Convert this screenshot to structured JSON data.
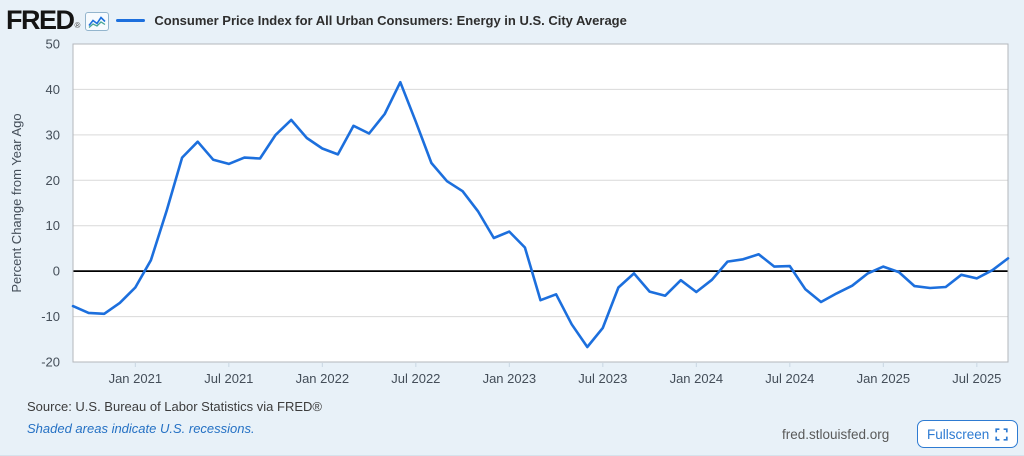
{
  "header": {
    "logo_text": "FRED",
    "logo_reg": "®",
    "series_title": "Consumer Price Index for All Urban Consumers: Energy in U.S. City Average"
  },
  "chart_data": {
    "type": "line",
    "title": "Consumer Price Index for All Urban Consumers: Energy in U.S. City Average",
    "xlabel": "",
    "ylabel": "Percent Change from Year Ago",
    "ylim": [
      -20,
      50
    ],
    "y_ticks": [
      50,
      40,
      30,
      20,
      10,
      0,
      -10,
      -20
    ],
    "grid": true,
    "zero_line": true,
    "legend_position": "top",
    "line_color": "#1c6fdd",
    "frequency": "monthly",
    "x": [
      "2020-09",
      "2020-10",
      "2020-11",
      "2020-12",
      "2021-01",
      "2021-02",
      "2021-03",
      "2021-04",
      "2021-05",
      "2021-06",
      "2021-07",
      "2021-08",
      "2021-09",
      "2021-10",
      "2021-11",
      "2021-12",
      "2022-01",
      "2022-02",
      "2022-03",
      "2022-04",
      "2022-05",
      "2022-06",
      "2022-07",
      "2022-08",
      "2022-09",
      "2022-10",
      "2022-11",
      "2022-12",
      "2023-01",
      "2023-02",
      "2023-03",
      "2023-04",
      "2023-05",
      "2023-06",
      "2023-07",
      "2023-08",
      "2023-09",
      "2023-10",
      "2023-11",
      "2023-12",
      "2024-01",
      "2024-02",
      "2024-03",
      "2024-04",
      "2024-05",
      "2024-06",
      "2024-07",
      "2024-08",
      "2024-09",
      "2024-10",
      "2024-11",
      "2024-12",
      "2025-01",
      "2025-02",
      "2025-03",
      "2025-04",
      "2025-05",
      "2025-06",
      "2025-07",
      "2025-08",
      "2025-09"
    ],
    "values": [
      -7.7,
      -9.2,
      -9.4,
      -7.0,
      -3.6,
      2.4,
      13.2,
      25.0,
      28.5,
      24.5,
      23.6,
      25.0,
      24.8,
      30.0,
      33.3,
      29.3,
      27.0,
      25.7,
      32.0,
      30.3,
      34.6,
      41.6,
      32.9,
      23.8,
      19.8,
      17.6,
      13.1,
      7.3,
      8.7,
      5.2,
      -6.4,
      -5.1,
      -11.7,
      -16.7,
      -12.5,
      -3.6,
      -0.5,
      -4.5,
      -5.4,
      -2.0,
      -4.6,
      -1.9,
      2.1,
      2.6,
      3.7,
      1.0,
      1.1,
      -4.0,
      -6.8,
      -4.9,
      -3.2,
      -0.5,
      1.0,
      -0.2,
      -3.3,
      -3.7,
      -3.5,
      -0.8,
      -1.6,
      0.2,
      2.8
    ],
    "x_tick_labels": [
      "Jan 2021",
      "Jul 2021",
      "Jan 2022",
      "Jul 2022",
      "Jan 2023",
      "Jul 2023",
      "Jan 2024",
      "Jul 2024",
      "Jan 2025",
      "Jul 2025"
    ],
    "x_tick_indices": [
      4,
      10,
      16,
      22,
      28,
      34,
      40,
      46,
      52,
      58
    ]
  },
  "footer": {
    "source": "Source: U.S. Bureau of Labor Statistics via FRED®",
    "recession_note": "Shaded areas indicate U.S. recessions.",
    "site": "fred.stlouisfed.org",
    "fullscreen_label": "Fullscreen"
  },
  "colors": {
    "background": "#e8f1f8",
    "plot_background": "#ffffff",
    "plot_border": "#b3b7bb",
    "gridline": "#d9d9d9",
    "zero_line": "#000000",
    "line": "#1c6fdd",
    "tick_text": "#444e59",
    "link_blue": "#2571c4",
    "button_blue": "#2e7bd2"
  },
  "icons": {
    "logo_chart": "sparkline-icon",
    "fullscreen": "fullscreen-expand-icon"
  }
}
